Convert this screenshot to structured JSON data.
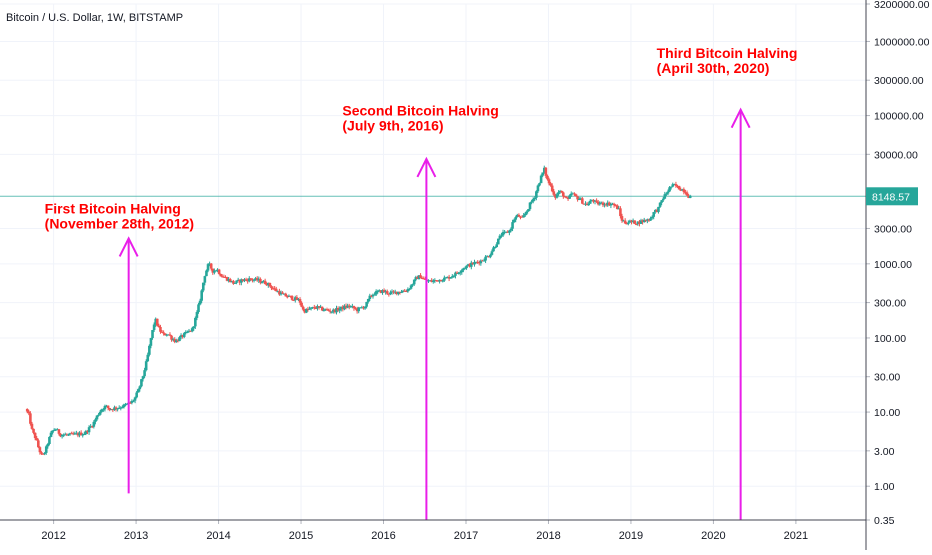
{
  "chart_data": {
    "type": "candlestick",
    "title": "Bitcoin / U.S. Dollar, 1W, BITSTAMP",
    "y_scale": "log",
    "ylim": [
      0.35,
      3200000
    ],
    "xlim": [
      2011.35,
      2021.85
    ],
    "y_ticks": [
      {
        "v": 3200000,
        "label": "3200000.00"
      },
      {
        "v": 1000000,
        "label": "1000000.00"
      },
      {
        "v": 300000,
        "label": "300000.00"
      },
      {
        "v": 100000,
        "label": "100000.00"
      },
      {
        "v": 30000,
        "label": "30000.00"
      },
      {
        "v": 3000,
        "label": "3000.00"
      },
      {
        "v": 1000,
        "label": "1000.00"
      },
      {
        "v": 300,
        "label": "300.00"
      },
      {
        "v": 100,
        "label": "100.00"
      },
      {
        "v": 30,
        "label": "30.00"
      },
      {
        "v": 10,
        "label": "10.00"
      },
      {
        "v": 3,
        "label": "3.00"
      },
      {
        "v": 1,
        "label": "1.00"
      },
      {
        "v": 0.35,
        "label": "0.35"
      }
    ],
    "x_ticks": [
      {
        "v": 2012,
        "label": "2012"
      },
      {
        "v": 2013,
        "label": "2013"
      },
      {
        "v": 2014,
        "label": "2014"
      },
      {
        "v": 2015,
        "label": "2015"
      },
      {
        "v": 2016,
        "label": "2016"
      },
      {
        "v": 2017,
        "label": "2017"
      },
      {
        "v": 2018,
        "label": "2018"
      },
      {
        "v": 2019,
        "label": "2019"
      },
      {
        "v": 2020,
        "label": "2020"
      },
      {
        "v": 2021,
        "label": "2021"
      }
    ],
    "price_path": [
      [
        2011.68,
        11
      ],
      [
        2011.72,
        9
      ],
      [
        2011.76,
        5.5
      ],
      [
        2011.8,
        4.5
      ],
      [
        2011.84,
        3.2
      ],
      [
        2011.88,
        2.5
      ],
      [
        2011.92,
        3
      ],
      [
        2011.96,
        4.2
      ],
      [
        2012.0,
        5.5
      ],
      [
        2012.04,
        6
      ],
      [
        2012.1,
        5
      ],
      [
        2012.2,
        4.9
      ],
      [
        2012.3,
        5
      ],
      [
        2012.4,
        5.2
      ],
      [
        2012.5,
        7
      ],
      [
        2012.55,
        9
      ],
      [
        2012.6,
        11
      ],
      [
        2012.65,
        12
      ],
      [
        2012.7,
        11
      ],
      [
        2012.8,
        11.5
      ],
      [
        2012.9,
        12.5
      ],
      [
        2012.96,
        13.5
      ],
      [
        2013.0,
        15
      ],
      [
        2013.05,
        20
      ],
      [
        2013.1,
        30
      ],
      [
        2013.15,
        50
      ],
      [
        2013.2,
        100
      ],
      [
        2013.25,
        180
      ],
      [
        2013.3,
        130
      ],
      [
        2013.35,
        110
      ],
      [
        2013.4,
        115
      ],
      [
        2013.45,
        100
      ],
      [
        2013.5,
        90
      ],
      [
        2013.55,
        100
      ],
      [
        2013.6,
        110
      ],
      [
        2013.65,
        120
      ],
      [
        2013.7,
        130
      ],
      [
        2013.75,
        200
      ],
      [
        2013.8,
        350
      ],
      [
        2013.85,
        700
      ],
      [
        2013.9,
        1000
      ],
      [
        2013.95,
        800
      ],
      [
        2014.0,
        850
      ],
      [
        2014.05,
        700
      ],
      [
        2014.1,
        650
      ],
      [
        2014.15,
        600
      ],
      [
        2014.2,
        550
      ],
      [
        2014.3,
        600
      ],
      [
        2014.4,
        620
      ],
      [
        2014.5,
        600
      ],
      [
        2014.6,
        550
      ],
      [
        2014.7,
        450
      ],
      [
        2014.8,
        380
      ],
      [
        2014.9,
        350
      ],
      [
        2015.0,
        320
      ],
      [
        2015.05,
        230
      ],
      [
        2015.1,
        240
      ],
      [
        2015.2,
        260
      ],
      [
        2015.3,
        240
      ],
      [
        2015.4,
        230
      ],
      [
        2015.5,
        250
      ],
      [
        2015.6,
        270
      ],
      [
        2015.7,
        240
      ],
      [
        2015.8,
        270
      ],
      [
        2015.85,
        350
      ],
      [
        2015.9,
        400
      ],
      [
        2016.0,
        430
      ],
      [
        2016.1,
        400
      ],
      [
        2016.2,
        420
      ],
      [
        2016.3,
        440
      ],
      [
        2016.35,
        500
      ],
      [
        2016.42,
        650
      ],
      [
        2016.47,
        680
      ],
      [
        2016.52,
        600
      ],
      [
        2016.6,
        580
      ],
      [
        2016.7,
        610
      ],
      [
        2016.8,
        650
      ],
      [
        2016.9,
        740
      ],
      [
        2017.0,
        900
      ],
      [
        2017.05,
        950
      ],
      [
        2017.1,
        1000
      ],
      [
        2017.2,
        1100
      ],
      [
        2017.3,
        1300
      ],
      [
        2017.4,
        2000
      ],
      [
        2017.45,
        2500
      ],
      [
        2017.5,
        2600
      ],
      [
        2017.55,
        2800
      ],
      [
        2017.6,
        4000
      ],
      [
        2017.65,
        4500
      ],
      [
        2017.7,
        4000
      ],
      [
        2017.75,
        5000
      ],
      [
        2017.8,
        6500
      ],
      [
        2017.85,
        8000
      ],
      [
        2017.9,
        12000
      ],
      [
        2017.94,
        16000
      ],
      [
        2017.97,
        19000
      ],
      [
        2018.0,
        14000
      ],
      [
        2018.05,
        11000
      ],
      [
        2018.1,
        8000
      ],
      [
        2018.15,
        9500
      ],
      [
        2018.2,
        8500
      ],
      [
        2018.25,
        7000
      ],
      [
        2018.3,
        9000
      ],
      [
        2018.35,
        8000
      ],
      [
        2018.4,
        7500
      ],
      [
        2018.45,
        6500
      ],
      [
        2018.5,
        6300
      ],
      [
        2018.55,
        7400
      ],
      [
        2018.6,
        6500
      ],
      [
        2018.7,
        6500
      ],
      [
        2018.8,
        6400
      ],
      [
        2018.87,
        5500
      ],
      [
        2018.9,
        4000
      ],
      [
        2018.95,
        3600
      ],
      [
        2019.0,
        3700
      ],
      [
        2019.1,
        3600
      ],
      [
        2019.2,
        3900
      ],
      [
        2019.25,
        4000
      ],
      [
        2019.3,
        5000
      ],
      [
        2019.35,
        5500
      ],
      [
        2019.4,
        7500
      ],
      [
        2019.45,
        9000
      ],
      [
        2019.5,
        11000
      ],
      [
        2019.55,
        11500
      ],
      [
        2019.6,
        10500
      ],
      [
        2019.65,
        10000
      ],
      [
        2019.68,
        9500
      ],
      [
        2019.72,
        8148.57
      ]
    ],
    "last_price": {
      "v": 8148.57,
      "label": "8148.57"
    },
    "annotations": [
      {
        "line1": "First Bitcoin Halving",
        "line2": "(November 28th, 2012)",
        "x": 2012.91,
        "arrow_from": 0.8,
        "arrow_to": 2200,
        "text_at": 4800
      },
      {
        "line1": "Second Bitcoin Halving",
        "line2": "(July 9th, 2016)",
        "x": 2016.52,
        "arrow_from": 0.35,
        "arrow_to": 26000,
        "text_at": 100000
      },
      {
        "line1": "Third Bitcoin Halving",
        "line2": "(April 30th, 2020)",
        "x": 2020.33,
        "arrow_from": 0.35,
        "arrow_to": 120000,
        "text_at": 600000
      }
    ],
    "colors": {
      "up": "#26a69a",
      "down": "#ef5350",
      "arrow": "#e91ee9",
      "annotation_text": "#ff0000",
      "price_line": "#26a69a",
      "grid": "#f0f3fa",
      "axis_text": "#131722"
    }
  }
}
